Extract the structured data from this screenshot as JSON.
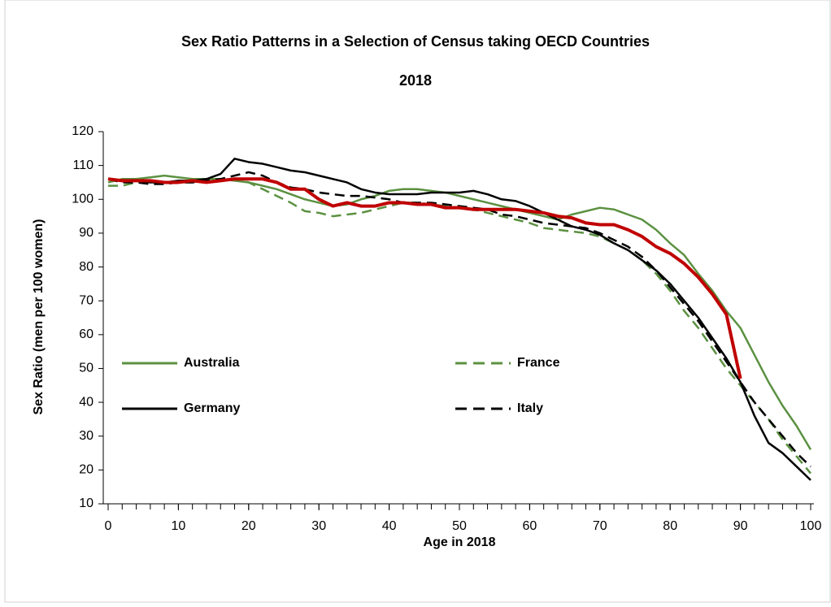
{
  "chart_data": {
    "type": "line",
    "title": "Sex Ratio Patterns in a Selection of Census taking OECD Countries",
    "subtitle": "2018",
    "x_label": "Age in 2018",
    "y_label": "Sex Ratio (men per 100 women)",
    "x": [
      0,
      2,
      4,
      6,
      8,
      10,
      12,
      14,
      16,
      18,
      20,
      22,
      24,
      26,
      28,
      30,
      32,
      34,
      36,
      38,
      40,
      42,
      44,
      46,
      48,
      50,
      52,
      54,
      56,
      58,
      60,
      62,
      64,
      66,
      68,
      70,
      72,
      74,
      76,
      78,
      80,
      82,
      84,
      86,
      88,
      90,
      92,
      94,
      96,
      98,
      100
    ],
    "xlim": [
      0,
      100
    ],
    "xticks": [
      0,
      10,
      20,
      30,
      40,
      50,
      60,
      70,
      80,
      90,
      100
    ],
    "ylim": [
      10,
      120
    ],
    "yticks": [
      10,
      20,
      30,
      40,
      50,
      60,
      70,
      80,
      90,
      100,
      110,
      120
    ],
    "series": [
      {
        "name": "Australia",
        "color": "#5b9141",
        "dashed": false,
        "values": [
          105,
          106,
          106,
          106.5,
          107,
          106.5,
          106,
          106,
          106,
          105.5,
          105,
          104,
          103,
          101.5,
          100,
          99,
          98,
          98.5,
          100,
          101,
          102.5,
          103,
          103,
          102.5,
          102,
          101,
          100,
          99,
          98,
          97,
          96,
          95,
          94,
          95.5,
          96.5,
          97.5,
          97,
          95.5,
          94,
          91,
          87,
          83.5,
          78,
          73,
          67,
          62,
          54,
          46,
          39,
          33,
          26
        ]
      },
      {
        "name": "France",
        "color": "#5b9141",
        "dashed": true,
        "values": [
          104,
          104,
          105,
          105,
          105,
          105,
          105,
          105.5,
          106,
          106,
          105,
          103,
          101,
          99,
          96.5,
          96,
          95,
          95.5,
          96,
          97,
          98,
          99,
          99,
          98.5,
          98,
          97.5,
          97,
          96,
          95,
          94,
          93,
          91.5,
          91,
          90.5,
          90,
          89,
          87,
          85,
          82,
          78,
          73,
          67,
          62,
          56,
          50,
          45,
          40,
          35,
          29,
          24,
          19
        ]
      },
      {
        "name": "Germany",
        "color": "#000000",
        "dashed": false,
        "values": [
          106,
          105.5,
          105.5,
          105,
          105,
          105.5,
          105.5,
          106,
          107.5,
          112,
          111,
          110.5,
          109.5,
          108.5,
          108,
          107,
          106,
          105,
          103,
          102,
          101.5,
          101.5,
          101.5,
          102,
          102,
          102,
          102.5,
          101.5,
          100,
          99.5,
          98,
          96,
          94,
          92,
          91,
          89.5,
          87,
          85,
          82,
          79,
          75,
          70,
          65,
          59,
          53,
          46,
          36,
          28,
          25,
          21,
          17
        ]
      },
      {
        "name": "Italy",
        "color": "#000000",
        "dashed": true,
        "values": [
          106,
          105,
          105,
          104.5,
          104.5,
          105,
          105,
          105.5,
          106,
          107,
          108,
          107,
          105,
          103.5,
          103,
          102,
          101.5,
          101,
          101,
          100.5,
          100,
          99,
          99,
          99,
          98.5,
          98,
          97.5,
          97,
          95.5,
          95,
          94,
          93,
          92.5,
          92,
          91.5,
          90,
          88,
          86,
          83,
          79,
          74,
          69,
          64,
          58,
          52,
          46,
          40,
          35,
          30,
          25,
          21
        ]
      },
      {
        "color": "#c00000",
        "dashed": false,
        "width": 4,
        "values": [
          106,
          105.5,
          105.5,
          105.5,
          105,
          105,
          105.5,
          105,
          105.5,
          106,
          106,
          106,
          105,
          103,
          103,
          100,
          98,
          99,
          98,
          98,
          99,
          99,
          98.5,
          98.5,
          97.5,
          97.5,
          97,
          97,
          97,
          97,
          96.5,
          96,
          95,
          94.5,
          93,
          92.5,
          92.5,
          91,
          89,
          86,
          84,
          81,
          77,
          72,
          66,
          47,
          null,
          null,
          null,
          null,
          null
        ]
      }
    ]
  }
}
